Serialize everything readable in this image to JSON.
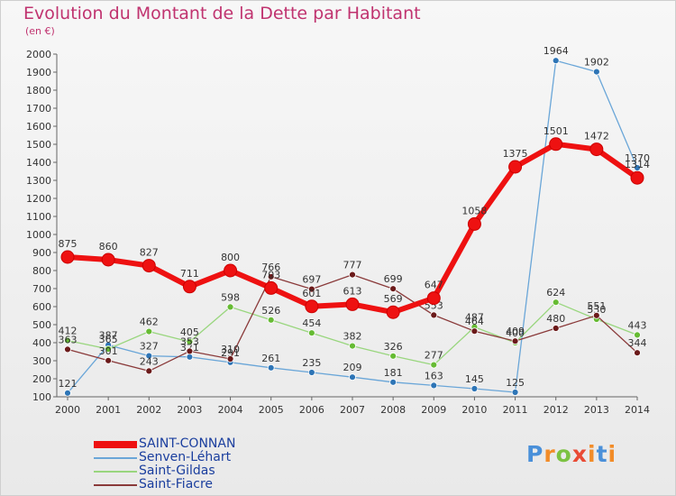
{
  "title": "Evolution du Montant de la Dette par Habitant",
  "subtitle": "(en €)",
  "brand": {
    "text": "Proxiti",
    "letters": [
      "P",
      "r",
      "o",
      "x",
      "i",
      "t",
      "i"
    ],
    "colors": [
      "#4a90d9",
      "#f28c28",
      "#7cc242",
      "#e94b35",
      "#f28c28",
      "#4a90d9",
      "#f28c28"
    ]
  },
  "chart_data": {
    "type": "line",
    "title": "Evolution du Montant de la Dette par Habitant",
    "subtitle": "(en €)",
    "xlabel": "",
    "ylabel": "",
    "categories": [
      "2000",
      "2001",
      "2002",
      "2003",
      "2004",
      "2005",
      "2006",
      "2007",
      "2008",
      "2009",
      "2010",
      "2011",
      "2012",
      "2013",
      "2014"
    ],
    "ylim": [
      100,
      2000
    ],
    "yticks": [
      100,
      200,
      300,
      400,
      500,
      600,
      700,
      800,
      900,
      1000,
      1100,
      1200,
      1300,
      1400,
      1500,
      1600,
      1700,
      1800,
      1900,
      2000
    ],
    "grid": false,
    "legend": "bottom-left",
    "series": [
      {
        "name": "SAINT-CONNAN",
        "color": "#ee1111",
        "marker": "#ee1111",
        "width": 6,
        "radius": 7,
        "values": [
          875,
          860,
          827,
          711,
          800,
          703,
          601,
          613,
          569,
          647,
          1058,
          1375,
          1501,
          1472,
          1314
        ]
      },
      {
        "name": "Senven-Léhart",
        "color": "#6aa6d8",
        "marker": "#2e75b6",
        "width": 1.3,
        "radius": 3.5,
        "values": [
          121,
          387,
          327,
          321,
          291,
          261,
          235,
          209,
          181,
          163,
          145,
          125,
          1964,
          1902,
          1370
        ]
      },
      {
        "name": "Saint-Gildas",
        "color": "#99d67e",
        "marker": "#66bb33",
        "width": 1.3,
        "radius": 3.5,
        "values": [
          412,
          365,
          462,
          405,
          598,
          526,
          454,
          382,
          326,
          277,
          487,
          400,
          624,
          530,
          443
        ]
      },
      {
        "name": "Saint-Fiacre",
        "color": "#8a3a3a",
        "marker": "#6b1a1a",
        "width": 1.3,
        "radius": 3.5,
        "values": [
          363,
          301,
          243,
          353,
          310,
          766,
          697,
          777,
          699,
          553,
          464,
          409,
          480,
          551,
          344
        ]
      }
    ]
  }
}
